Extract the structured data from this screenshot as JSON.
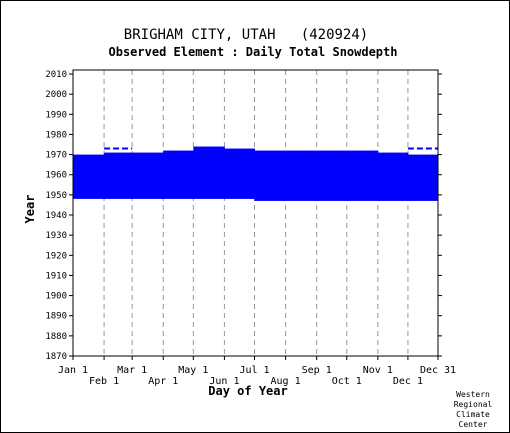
{
  "chart_data": {
    "type": "area",
    "title": "BRIGHAM CITY, UTAH   (420924)",
    "subtitle": "Observed Element : Daily Total Snowdepth",
    "xlabel": "Day of Year",
    "ylabel": "Year",
    "xlim": [
      1,
      365
    ],
    "ylim": [
      1870,
      2012
    ],
    "ytick_values": [
      1870,
      1880,
      1890,
      1900,
      1910,
      1920,
      1930,
      1940,
      1950,
      1960,
      1970,
      1980,
      1990,
      2000,
      2010
    ],
    "xticks_top_row": [
      {
        "label": "Jan 1",
        "day": 1
      },
      {
        "label": "Mar 1",
        "day": 60
      },
      {
        "label": "May 1",
        "day": 121
      },
      {
        "label": "Jul 1",
        "day": 182
      },
      {
        "label": "Sep 1",
        "day": 244
      },
      {
        "label": "Nov 1",
        "day": 305
      },
      {
        "label": "Dec 31",
        "day": 365
      }
    ],
    "xticks_bottom_row": [
      {
        "label": "Feb 1",
        "day": 32
      },
      {
        "label": "Apr 1",
        "day": 91
      },
      {
        "label": "Jun 1",
        "day": 152
      },
      {
        "label": "Aug 1",
        "day": 213
      },
      {
        "label": "Oct 1",
        "day": 274
      },
      {
        "label": "Dec 1",
        "day": 335
      }
    ],
    "gridlines_days": [
      32,
      60,
      91,
      121,
      152,
      182,
      213,
      244,
      274,
      305,
      335
    ],
    "grid": true,
    "fill_color": "#0000ff",
    "coverage_blocks": [
      {
        "start_day": 1,
        "end_day": 32,
        "year_start": 1948,
        "year_end": 1970
      },
      {
        "start_day": 32,
        "end_day": 60,
        "year_start": 1948,
        "year_end": 1971
      },
      {
        "start_day": 60,
        "end_day": 91,
        "year_start": 1948,
        "year_end": 1971
      },
      {
        "start_day": 91,
        "end_day": 121,
        "year_start": 1948,
        "year_end": 1972
      },
      {
        "start_day": 121,
        "end_day": 152,
        "year_start": 1948,
        "year_end": 1974
      },
      {
        "start_day": 152,
        "end_day": 182,
        "year_start": 1948,
        "year_end": 1973
      },
      {
        "start_day": 182,
        "end_day": 213,
        "year_start": 1947,
        "year_end": 1972
      },
      {
        "start_day": 213,
        "end_day": 244,
        "year_start": 1947,
        "year_end": 1972
      },
      {
        "start_day": 244,
        "end_day": 274,
        "year_start": 1947,
        "year_end": 1972
      },
      {
        "start_day": 274,
        "end_day": 305,
        "year_start": 1947,
        "year_end": 1972
      },
      {
        "start_day": 305,
        "end_day": 335,
        "year_start": 1947,
        "year_end": 1971
      },
      {
        "start_day": 335,
        "end_day": 365,
        "year_start": 1947,
        "year_end": 1970
      }
    ],
    "dashed_segments": [
      {
        "start_day": 32,
        "end_day": 60,
        "year": 1973
      },
      {
        "start_day": 335,
        "end_day": 365,
        "year": 1973
      }
    ]
  },
  "credit": {
    "line1": "Western",
    "line2": "Regional",
    "line3": "Climate",
    "line4": "Center"
  }
}
